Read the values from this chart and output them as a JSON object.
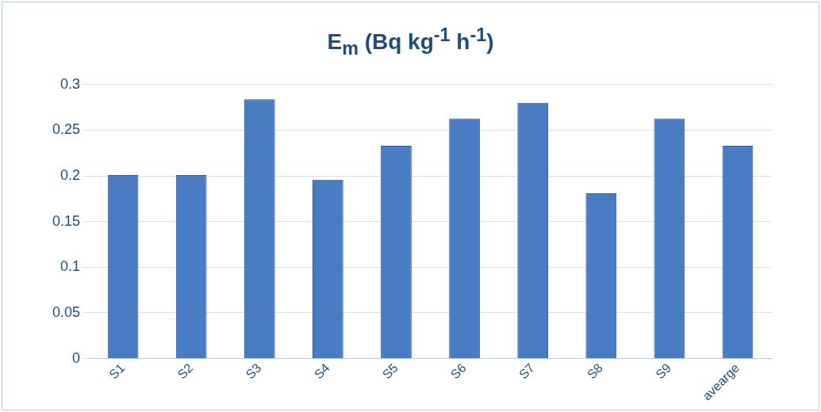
{
  "chart_data": {
    "type": "bar",
    "title": "E$_{m}$ (Bq kg$^{-1}$ h$^{-1}$)",
    "categories": [
      "S1",
      "S2",
      "S3",
      "S4",
      "S5",
      "S6",
      "S7",
      "S8",
      "S9",
      "avearge"
    ],
    "values": [
      0.201,
      0.201,
      0.284,
      0.196,
      0.233,
      0.263,
      0.28,
      0.181,
      0.263,
      0.233
    ],
    "color": "#4a7cc4",
    "ylim": [
      0,
      0.3
    ],
    "yticks": [
      0,
      0.05,
      0.1,
      0.15,
      0.2,
      0.25,
      0.3
    ],
    "grid": "y",
    "legend": false
  }
}
